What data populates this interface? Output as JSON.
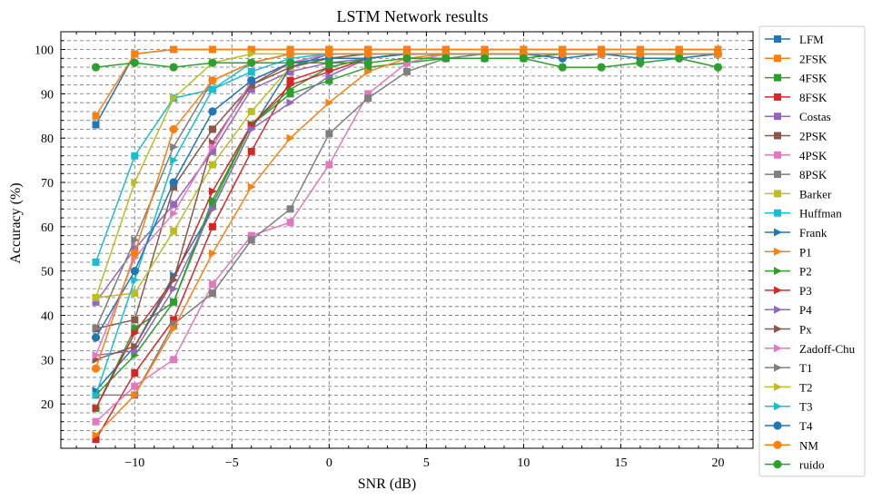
{
  "chart_data": {
    "type": "line",
    "title": "LSTM Network results",
    "xlabel": "SNR (dB)",
    "ylabel": "Accuracy (%)",
    "x": [
      -12,
      -10,
      -8,
      -6,
      -4,
      -2,
      0,
      2,
      4,
      6,
      8,
      10,
      12,
      14,
      16,
      18,
      20
    ],
    "xlim": [
      -13.8,
      21.8
    ],
    "ylim": [
      10,
      104
    ],
    "x_ticks": [
      -10,
      -5,
      0,
      5,
      10,
      15,
      20
    ],
    "x_tick_labels": [
      "−10",
      "−5",
      "0",
      "5",
      "10",
      "15",
      "20"
    ],
    "y_ticks": [
      20,
      30,
      40,
      50,
      60,
      70,
      80,
      90,
      100
    ],
    "y_tick_labels": [
      "20",
      "30",
      "40",
      "50",
      "60",
      "70",
      "80",
      "90",
      "100"
    ],
    "grid": true,
    "legend_position": "right-outside",
    "series": [
      {
        "name": "LFM",
        "color": "#1f77b4",
        "marker": "square",
        "values": [
          83,
          99,
          100,
          100,
          100,
          100,
          100,
          100,
          100,
          100,
          100,
          100,
          100,
          100,
          100,
          100,
          100
        ]
      },
      {
        "name": "2FSK",
        "color": "#ff7f0e",
        "marker": "square",
        "values": [
          85,
          99,
          100,
          100,
          100,
          100,
          100,
          100,
          100,
          100,
          100,
          100,
          100,
          100,
          100,
          100,
          100
        ]
      },
      {
        "name": "4FSK",
        "color": "#2ca02c",
        "marker": "square",
        "values": [
          19,
          37,
          43,
          65,
          83,
          90,
          93,
          96,
          97,
          98,
          98,
          98,
          99,
          99,
          99,
          99,
          99
        ]
      },
      {
        "name": "8FSK",
        "color": "#d62728",
        "marker": "square",
        "values": [
          12,
          27,
          39,
          60,
          77,
          93,
          96,
          98,
          99,
          99,
          99,
          99,
          99,
          99,
          99,
          99,
          99
        ]
      },
      {
        "name": "Costas",
        "color": "#9467bd",
        "marker": "square",
        "values": [
          43,
          55,
          65,
          77,
          91,
          95,
          97,
          98,
          99,
          99,
          99,
          99,
          99,
          99,
          99,
          99,
          99
        ]
      },
      {
        "name": "2PSK",
        "color": "#8c564b",
        "marker": "square",
        "values": [
          37,
          39,
          69,
          82,
          92,
          97,
          99,
          99,
          99,
          99,
          99,
          99,
          99,
          99,
          99,
          99,
          99
        ]
      },
      {
        "name": "4PSK",
        "color": "#e377c2",
        "marker": "square",
        "values": [
          16,
          24,
          30,
          47,
          58,
          61,
          74,
          90,
          97,
          99,
          99,
          99,
          99,
          99,
          99,
          99,
          99
        ]
      },
      {
        "name": "8PSK",
        "color": "#7f7f7f",
        "marker": "square",
        "values": [
          22,
          22,
          38,
          45,
          57,
          64,
          81,
          89,
          95,
          98,
          99,
          99,
          99,
          99,
          99,
          99,
          99
        ]
      },
      {
        "name": "Barker",
        "color": "#bcbd22",
        "marker": "square",
        "values": [
          44,
          45,
          59,
          74,
          86,
          96,
          98,
          99,
          99,
          99,
          99,
          99,
          99,
          99,
          99,
          99,
          99
        ]
      },
      {
        "name": "Huffman",
        "color": "#17becf",
        "marker": "square",
        "values": [
          52,
          76,
          89,
          91,
          95,
          98,
          99,
          99,
          99,
          99,
          99,
          99,
          99,
          99,
          99,
          99,
          99
        ]
      },
      {
        "name": "Frank",
        "color": "#1f77b4",
        "marker": "triangle-right",
        "values": [
          23,
          33,
          49,
          64,
          82,
          96,
          99,
          99,
          99,
          99,
          99,
          99,
          99,
          99,
          99,
          99,
          99
        ]
      },
      {
        "name": "P1",
        "color": "#ff7f0e",
        "marker": "triangle-right",
        "values": [
          13,
          22,
          37,
          54,
          69,
          80,
          88,
          95,
          98,
          99,
          99,
          99,
          99,
          99,
          99,
          99,
          99
        ]
      },
      {
        "name": "P2",
        "color": "#2ca02c",
        "marker": "triangle-right",
        "values": [
          22,
          31,
          43,
          66,
          83,
          91,
          96,
          98,
          99,
          99,
          99,
          99,
          99,
          99,
          99,
          99,
          99
        ]
      },
      {
        "name": "P3",
        "color": "#d62728",
        "marker": "triangle-right",
        "values": [
          19,
          36,
          48,
          68,
          83,
          92,
          95,
          98,
          99,
          99,
          99,
          99,
          99,
          99,
          99,
          99,
          99
        ]
      },
      {
        "name": "P4",
        "color": "#9467bd",
        "marker": "triangle-right",
        "values": [
          31,
          32,
          46,
          64,
          82,
          88,
          94,
          98,
          99,
          99,
          99,
          99,
          99,
          99,
          99,
          99,
          99
        ]
      },
      {
        "name": "Px",
        "color": "#8c564b",
        "marker": "triangle-right",
        "values": [
          30,
          33,
          48,
          79,
          92,
          96,
          98,
          99,
          99,
          99,
          99,
          99,
          99,
          99,
          99,
          99,
          99
        ]
      },
      {
        "name": "Zadoff-Chu",
        "color": "#e377c2",
        "marker": "triangle-right",
        "values": [
          31,
          53,
          63,
          78,
          93,
          97,
          99,
          99,
          99,
          99,
          99,
          99,
          99,
          99,
          99,
          99,
          99
        ]
      },
      {
        "name": "T1",
        "color": "#7f7f7f",
        "marker": "triangle-right",
        "values": [
          37,
          57,
          78,
          93,
          97,
          99,
          99,
          99,
          99,
          99,
          99,
          99,
          99,
          99,
          99,
          99,
          99
        ]
      },
      {
        "name": "T2",
        "color": "#bcbd22",
        "marker": "triangle-right",
        "values": [
          44,
          70,
          89,
          97,
          99,
          99,
          99,
          99,
          99,
          99,
          99,
          99,
          99,
          99,
          99,
          99,
          99
        ]
      },
      {
        "name": "T3",
        "color": "#17becf",
        "marker": "triangle-right",
        "values": [
          22,
          48,
          75,
          91,
          97,
          99,
          99,
          99,
          99,
          99,
          99,
          99,
          99,
          99,
          99,
          99,
          99
        ]
      },
      {
        "name": "T4",
        "color": "#1f77b4",
        "marker": "circle",
        "values": [
          35,
          50,
          70,
          86,
          93,
          97,
          98,
          98,
          99,
          99,
          99,
          99,
          98,
          99,
          98,
          98,
          99
        ]
      },
      {
        "name": "NM",
        "color": "#ff7f0e",
        "marker": "circle",
        "values": [
          28,
          54,
          82,
          93,
          97,
          99,
          99,
          99,
          99,
          99,
          99,
          99,
          99,
          99,
          99,
          99,
          99
        ]
      },
      {
        "name": "ruido",
        "color": "#2ca02c",
        "marker": "circle",
        "values": [
          96,
          97,
          96,
          97,
          97,
          97,
          97,
          97,
          98,
          98,
          98,
          98,
          96,
          96,
          97,
          98,
          96
        ]
      }
    ]
  }
}
